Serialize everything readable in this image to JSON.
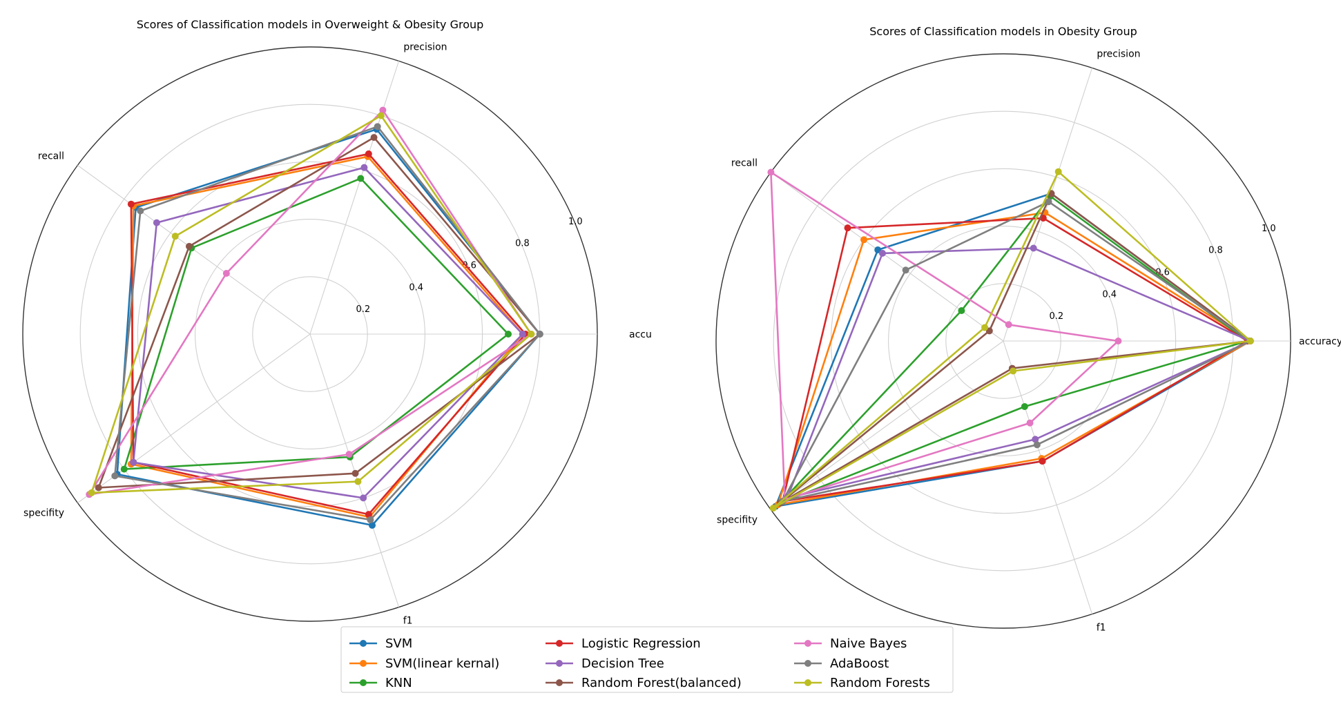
{
  "series_styles": [
    {
      "name": "SVM",
      "color": "#1f77b4"
    },
    {
      "name": "SVM(linear kernal)",
      "color": "#ff7f0e"
    },
    {
      "name": "KNN",
      "color": "#2ca02c"
    },
    {
      "name": "Logistic Regression",
      "color": "#d62728"
    },
    {
      "name": "Decision Tree",
      "color": "#9467bd"
    },
    {
      "name": "Random Forest(balanced)",
      "color": "#8c564b"
    },
    {
      "name": "Naive Bayes",
      "color": "#e377c2"
    },
    {
      "name": "AdaBoost",
      "color": "#7f7f7f"
    },
    {
      "name": "Random Forests",
      "color": "#bcbd22"
    }
  ],
  "chart_data": [
    {
      "type": "radar",
      "title": "Scores of Classification models in Overweight & Obesity Group",
      "axes": [
        "accu",
        "precision",
        "recall",
        "specifity",
        "f1"
      ],
      "rlim": [
        0,
        1.0
      ],
      "r_ticks": [
        "0.2",
        "0.4",
        "0.6",
        "0.8",
        "1.0"
      ],
      "grid": true,
      "series": [
        {
          "name": "SVM",
          "values": [
            0.8,
            0.75,
            0.75,
            0.83,
            0.7
          ]
        },
        {
          "name": "SVM(linear kernal)",
          "values": [
            0.74,
            0.65,
            0.76,
            0.77,
            0.67
          ]
        },
        {
          "name": "KNN",
          "values": [
            0.69,
            0.57,
            0.51,
            0.8,
            0.45
          ]
        },
        {
          "name": "Logistic Regression",
          "values": [
            0.75,
            0.66,
            0.77,
            0.76,
            0.66
          ]
        },
        {
          "name": "Decision Tree",
          "values": [
            0.74,
            0.61,
            0.66,
            0.76,
            0.6
          ]
        },
        {
          "name": "Random Forest(balanced)",
          "values": [
            0.8,
            0.72,
            0.52,
            0.91,
            0.51
          ]
        },
        {
          "name": "Naive Bayes",
          "values": [
            0.77,
            0.82,
            0.36,
            0.95,
            0.44
          ]
        },
        {
          "name": "AdaBoost",
          "values": [
            0.8,
            0.76,
            0.73,
            0.84,
            0.68
          ]
        },
        {
          "name": "Random Forests",
          "values": [
            0.77,
            0.8,
            0.58,
            0.94,
            0.54
          ]
        }
      ]
    },
    {
      "type": "radar",
      "title": "Scores of Classification models in Obesity Group",
      "axes": [
        "accuracy",
        "precision",
        "recall",
        "specifity",
        "f1"
      ],
      "rlim": [
        0,
        1.0
      ],
      "r_ticks": [
        "0.2",
        "0.4",
        "0.6",
        "0.8",
        "1.0"
      ],
      "grid": true,
      "series": [
        {
          "name": "SVM",
          "values": [
            0.86,
            0.54,
            0.54,
            0.98,
            0.44
          ]
        },
        {
          "name": "SVM(linear kernal)",
          "values": [
            0.86,
            0.47,
            0.6,
            0.97,
            0.43
          ]
        },
        {
          "name": "KNN",
          "values": [
            0.85,
            0.53,
            0.18,
            0.96,
            0.24
          ]
        },
        {
          "name": "Logistic Regression",
          "values": [
            0.85,
            0.45,
            0.67,
            0.95,
            0.44
          ]
        },
        {
          "name": "Decision Tree",
          "values": [
            0.86,
            0.34,
            0.52,
            0.93,
            0.36
          ]
        },
        {
          "name": "Random Forest(balanced)",
          "values": [
            0.86,
            0.54,
            0.06,
            0.96,
            0.1
          ]
        },
        {
          "name": "Naive Bayes",
          "values": [
            0.4,
            0.06,
            1.0,
            0.94,
            0.3
          ]
        },
        {
          "name": "AdaBoost",
          "values": [
            0.86,
            0.51,
            0.42,
            0.95,
            0.38
          ]
        },
        {
          "name": "Random Forests",
          "values": [
            0.86,
            0.62,
            0.08,
            0.99,
            0.11
          ]
        }
      ]
    }
  ],
  "legend": {
    "placement": "bottom-center",
    "labels": [
      "SVM",
      "SVM(linear kernal)",
      "KNN",
      "Logistic Regression",
      "Decision Tree",
      "Random Forest(balanced)",
      "Naive Bayes",
      "AdaBoost",
      "Random Forests"
    ]
  }
}
